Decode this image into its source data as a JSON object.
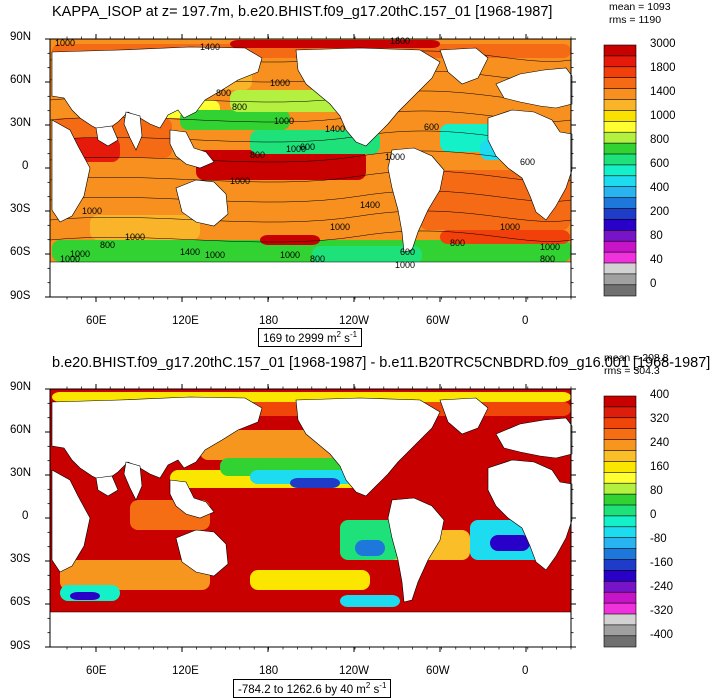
{
  "panels": [
    {
      "title": "KAPPA_ISOP at z= 197.7m, b.e20.BHIST.f09_g17.20thC.157_01 [1968-1987]",
      "stats": {
        "mean": "mean = 1093",
        "rms": "rms = 1190"
      },
      "lat_labels": [
        "90N",
        "60N",
        "30N",
        "0",
        "30S",
        "60S",
        "90S"
      ],
      "lon_labels": [
        "60E",
        "120E",
        "180",
        "120W",
        "60W",
        "0"
      ],
      "range_text": "169 to 2999 m",
      "range_unit_sup": "2",
      "range_unit_tail": " s",
      "range_unit_sup2": "-1",
      "colorbar": {
        "labels": [
          "3000",
          "1800",
          "1400",
          "1000",
          "800",
          "600",
          "400",
          "200",
          "80",
          "40",
          "0"
        ],
        "colors": [
          "#c80000",
          "#e61a0a",
          "#f2400a",
          "#f56a14",
          "#f7901e",
          "#f9b42a",
          "#fbe100",
          "#ffff32",
          "#b4f040",
          "#32d232",
          "#1ee17a",
          "#14f0c8",
          "#1edcf0",
          "#28b4f0",
          "#1e78dc",
          "#1e3cc8",
          "#2800c8",
          "#7814c8",
          "#c814c8",
          "#f032dc",
          "#d2d2d2",
          "#a0a0a0",
          "#707070"
        ]
      },
      "contour_labels": [
        "1000",
        "1400",
        "1800",
        "800",
        "1000",
        "1400",
        "1000",
        "600",
        "800",
        "1000",
        "600",
        "1000",
        "1400",
        "1000",
        "1000",
        "800",
        "1000",
        "1000",
        "800",
        "1000",
        "600",
        "800",
        "1000",
        "600",
        "1000",
        "1000",
        "1400",
        "1000",
        "1000",
        "800",
        "800",
        "1000"
      ]
    },
    {
      "title": "b.e20.BHIST.f09_g17.20thC.157_01 [1968-1987] - b.e11.B20TRC5CNBDRD.f09_g16.001 [1968-1987]",
      "stats": {
        "mean": "mean = 208.8",
        "rms": "rms = 304.3"
      },
      "lat_labels": [
        "90N",
        "60N",
        "30N",
        "0",
        "30S",
        "60S",
        "90S"
      ],
      "lon_labels": [
        "60E",
        "120E",
        "180",
        "120W",
        "60W",
        "0"
      ],
      "range_text": "-784.2 to 1262.6 by 40 m",
      "range_unit_sup": "2",
      "range_unit_tail": " s",
      "range_unit_sup2": "-1",
      "colorbar": {
        "labels": [
          "400",
          "320",
          "240",
          "160",
          "80",
          "0",
          "-80",
          "-160",
          "-240",
          "-320",
          "-400"
        ],
        "colors": [
          "#c80000",
          "#dc1e0a",
          "#f0460a",
          "#f56e14",
          "#f7961e",
          "#f9be28",
          "#fbe600",
          "#ffff32",
          "#b4f040",
          "#32d232",
          "#1ee17a",
          "#14f0c8",
          "#1edcf0",
          "#28b4f0",
          "#1e78dc",
          "#1e3cc8",
          "#2800c8",
          "#7814c8",
          "#c814c8",
          "#f032dc",
          "#d2d2d2",
          "#a0a0a0",
          "#707070"
        ]
      }
    }
  ]
}
